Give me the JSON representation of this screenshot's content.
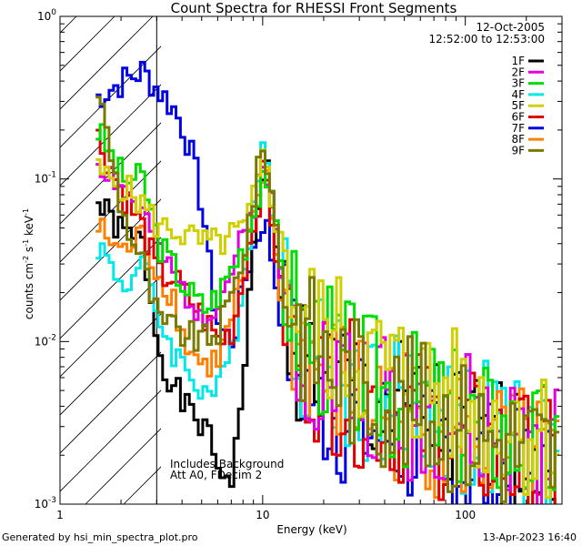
{
  "chart_data": {
    "type": "line",
    "title": "Count Spectra for RHESSI Front Segments",
    "xlabel": "Energy (keV)",
    "ylabel": "counts cm^-2 s^-1 keV^-1",
    "xscale": "log",
    "yscale": "log",
    "xlim": [
      1,
      300
    ],
    "ylim": [
      0.001,
      1
    ],
    "x_tick_labels": [
      "1",
      "10",
      "100"
    ],
    "y_tick_labels": [
      {
        "base": "10",
        "exp": "0"
      },
      {
        "base": "10",
        "exp": "-1"
      },
      {
        "base": "10",
        "exp": "-2"
      },
      {
        "base": "10",
        "exp": "-3"
      }
    ],
    "date": "12-Oct-2005",
    "time_range": "12:52:00 to 12:53:00",
    "hatched_region_max_keV": 3,
    "annotations": [
      "Includes Background",
      "Att A0, FDecim 2"
    ],
    "footer_left": "Generated by hsi_min_spectra_plot.pro",
    "footer_right": "13-Apr-2023 16:40",
    "series": [
      {
        "name": "1F",
        "color": "#000000",
        "points": [
          [
            1.5,
            0.07
          ],
          [
            2,
            0.046
          ],
          [
            2.5,
            0.04
          ],
          [
            3,
            0.009
          ],
          [
            3.5,
            0.0055
          ],
          [
            4,
            0.004
          ],
          [
            5,
            0.003
          ],
          [
            6,
            0.0016
          ],
          [
            7,
            0.0015
          ],
          [
            8,
            0.008
          ],
          [
            9,
            0.05
          ],
          [
            10,
            0.15
          ],
          [
            11,
            0.05
          ],
          [
            12,
            0.02
          ],
          [
            15,
            0.008
          ],
          [
            20,
            0.006
          ],
          [
            30,
            0.0045
          ],
          [
            50,
            0.0035
          ],
          [
            70,
            0.003
          ],
          [
            100,
            0.0025
          ],
          [
            150,
            0.002
          ],
          [
            200,
            0.002
          ],
          [
            280,
            0.0018
          ]
        ]
      },
      {
        "name": "2F",
        "color": "#e000e0",
        "points": [
          [
            1.5,
            0.13
          ],
          [
            2,
            0.09
          ],
          [
            2.5,
            0.06
          ],
          [
            3,
            0.038
          ],
          [
            3.5,
            0.025
          ],
          [
            4,
            0.02
          ],
          [
            5,
            0.015
          ],
          [
            6,
            0.018
          ],
          [
            7,
            0.03
          ],
          [
            8,
            0.045
          ],
          [
            9,
            0.08
          ],
          [
            10,
            0.15
          ],
          [
            11,
            0.06
          ],
          [
            12,
            0.025
          ],
          [
            15,
            0.009
          ],
          [
            20,
            0.007
          ],
          [
            30,
            0.005
          ],
          [
            50,
            0.004
          ],
          [
            70,
            0.0035
          ],
          [
            100,
            0.003
          ],
          [
            150,
            0.0025
          ],
          [
            200,
            0.002
          ],
          [
            280,
            0.002
          ]
        ]
      },
      {
        "name": "3F",
        "color": "#00dd00",
        "points": [
          [
            1.5,
            0.2
          ],
          [
            2,
            0.1
          ],
          [
            2.5,
            0.1
          ],
          [
            3,
            0.04
          ],
          [
            3.5,
            0.03
          ],
          [
            4,
            0.022
          ],
          [
            5,
            0.016
          ],
          [
            6,
            0.02
          ],
          [
            7,
            0.03
          ],
          [
            8,
            0.04
          ],
          [
            9,
            0.07
          ],
          [
            10,
            0.13
          ],
          [
            11,
            0.06
          ],
          [
            12,
            0.03
          ],
          [
            15,
            0.012
          ],
          [
            20,
            0.009
          ],
          [
            30,
            0.006
          ],
          [
            50,
            0.0045
          ],
          [
            70,
            0.004
          ],
          [
            100,
            0.0032
          ],
          [
            150,
            0.0028
          ],
          [
            200,
            0.0024
          ],
          [
            280,
            0.002
          ]
        ]
      },
      {
        "name": "4F",
        "color": "#00e8e8",
        "points": [
          [
            1.5,
            0.04
          ],
          [
            2,
            0.022
          ],
          [
            2.5,
            0.03
          ],
          [
            3,
            0.014
          ],
          [
            3.5,
            0.009
          ],
          [
            4,
            0.007
          ],
          [
            5,
            0.005
          ],
          [
            6,
            0.005
          ],
          [
            7,
            0.01
          ],
          [
            8,
            0.03
          ],
          [
            9,
            0.08
          ],
          [
            10,
            0.19
          ],
          [
            11,
            0.06
          ],
          [
            12,
            0.025
          ],
          [
            15,
            0.009
          ],
          [
            20,
            0.007
          ],
          [
            30,
            0.005
          ],
          [
            50,
            0.004
          ],
          [
            70,
            0.0035
          ],
          [
            100,
            0.003
          ],
          [
            150,
            0.0025
          ],
          [
            200,
            0.002
          ],
          [
            280,
            0.0018
          ]
        ]
      },
      {
        "name": "5F",
        "color": "#d0d000",
        "points": [
          [
            1.5,
            0.11
          ],
          [
            2,
            0.09
          ],
          [
            2.5,
            0.07
          ],
          [
            3,
            0.05
          ],
          [
            3.5,
            0.05
          ],
          [
            4,
            0.045
          ],
          [
            5,
            0.04
          ],
          [
            6,
            0.04
          ],
          [
            7,
            0.045
          ],
          [
            8,
            0.05
          ],
          [
            9,
            0.08
          ],
          [
            10,
            0.15
          ],
          [
            11,
            0.07
          ],
          [
            12,
            0.04
          ],
          [
            15,
            0.015
          ],
          [
            20,
            0.011
          ],
          [
            30,
            0.008
          ],
          [
            50,
            0.006
          ],
          [
            70,
            0.005
          ],
          [
            100,
            0.004
          ],
          [
            150,
            0.0035
          ],
          [
            200,
            0.003
          ],
          [
            280,
            0.0025
          ]
        ]
      },
      {
        "name": "6F",
        "color": "#e00000",
        "points": [
          [
            1.5,
            0.18
          ],
          [
            2,
            0.08
          ],
          [
            2.5,
            0.05
          ],
          [
            3,
            0.025
          ],
          [
            3.5,
            0.025
          ],
          [
            4,
            0.02
          ],
          [
            5,
            0.014
          ],
          [
            6,
            0.01
          ],
          [
            7,
            0.012
          ],
          [
            8,
            0.03
          ],
          [
            9,
            0.06
          ],
          [
            10,
            0.12
          ],
          [
            11,
            0.05
          ],
          [
            12,
            0.02
          ],
          [
            15,
            0.008
          ],
          [
            20,
            0.006
          ],
          [
            30,
            0.0045
          ],
          [
            50,
            0.0035
          ],
          [
            70,
            0.003
          ],
          [
            100,
            0.0025
          ],
          [
            150,
            0.002
          ],
          [
            200,
            0.0018
          ],
          [
            280,
            0.0015
          ]
        ]
      },
      {
        "name": "7F",
        "color": "#0000e0",
        "points": [
          [
            1.5,
            0.32
          ],
          [
            2,
            0.4
          ],
          [
            2.5,
            0.46
          ],
          [
            3,
            0.35
          ],
          [
            3.5,
            0.28
          ],
          [
            4,
            0.2
          ],
          [
            4.5,
            0.12
          ],
          [
            5,
            0.06
          ],
          [
            5.5,
            0.02
          ],
          [
            6,
            0.012
          ],
          [
            7,
            0.01
          ],
          [
            8,
            0.025
          ],
          [
            9,
            0.04
          ],
          [
            10,
            0.06
          ],
          [
            11,
            0.03
          ],
          [
            12,
            0.015
          ],
          [
            15,
            0.006
          ],
          [
            20,
            0.004
          ],
          [
            30,
            0.003
          ],
          [
            50,
            0.0025
          ],
          [
            70,
            0.002
          ],
          [
            100,
            0.0018
          ],
          [
            150,
            0.0015
          ],
          [
            200,
            0.0013
          ],
          [
            280,
            0.0012
          ]
        ]
      },
      {
        "name": "8F",
        "color": "#ff8000",
        "points": [
          [
            1.5,
            0.05
          ],
          [
            2,
            0.035
          ],
          [
            2.5,
            0.045
          ],
          [
            3,
            0.025
          ],
          [
            3.5,
            0.02
          ],
          [
            4,
            0.01
          ],
          [
            5,
            0.007
          ],
          [
            6,
            0.008
          ],
          [
            7,
            0.015
          ],
          [
            8,
            0.03
          ],
          [
            9,
            0.06
          ],
          [
            10,
            0.12
          ],
          [
            11,
            0.05
          ],
          [
            12,
            0.02
          ],
          [
            15,
            0.008
          ],
          [
            20,
            0.006
          ],
          [
            30,
            0.0045
          ],
          [
            50,
            0.0035
          ],
          [
            70,
            0.003
          ],
          [
            100,
            0.0025
          ],
          [
            150,
            0.002
          ],
          [
            200,
            0.0018
          ],
          [
            280,
            0.0016
          ]
        ]
      },
      {
        "name": "9F",
        "color": "#7a7a00",
        "points": [
          [
            1.5,
            0.36
          ],
          [
            2,
            0.06
          ],
          [
            2.5,
            0.03
          ],
          [
            3,
            0.013
          ],
          [
            3.5,
            0.012
          ],
          [
            4,
            0.011
          ],
          [
            5,
            0.01
          ],
          [
            6,
            0.012
          ],
          [
            7,
            0.02
          ],
          [
            8,
            0.04
          ],
          [
            9,
            0.09
          ],
          [
            10,
            0.17
          ],
          [
            11,
            0.07
          ],
          [
            12,
            0.03
          ],
          [
            15,
            0.012
          ],
          [
            20,
            0.008
          ],
          [
            30,
            0.0055
          ],
          [
            50,
            0.004
          ],
          [
            70,
            0.0035
          ],
          [
            100,
            0.003
          ],
          [
            150,
            0.0025
          ],
          [
            200,
            0.0022
          ],
          [
            280,
            0.002
          ]
        ]
      }
    ]
  }
}
